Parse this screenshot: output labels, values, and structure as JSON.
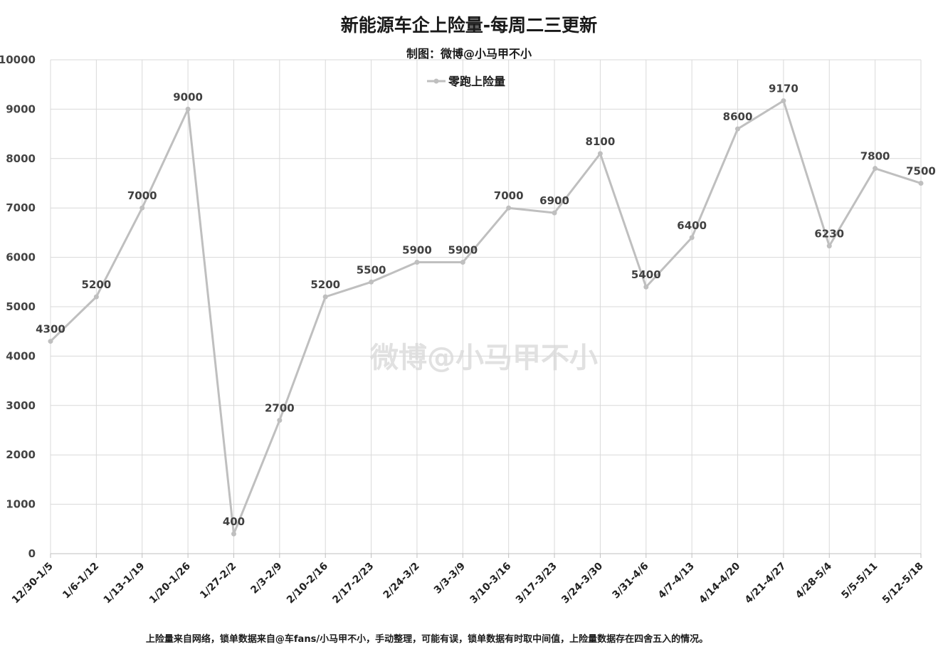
{
  "chart_data": {
    "type": "line",
    "title": "新能源车企上险量-每周二三更新",
    "subtitle": "制图：微博@小马甲不小",
    "footnote": "上险量来自网络，锁单数据来自@车fans/小马甲不小，手动整理，可能有误，锁单数据有时取中间值，上险量数据存在四舍五入的情况。",
    "watermark": "微博@小马甲不小",
    "categories": [
      "12/30-1/5",
      "1/6-1/12",
      "1/13-1/19",
      "1/20-1/26",
      "1/27-2/2",
      "2/3-2/9",
      "2/10-2/16",
      "2/17-2/23",
      "2/24-3/2",
      "3/3-3/9",
      "3/10-3/16",
      "3/17-3/23",
      "3/24-3/30",
      "3/31-4/6",
      "4/7-4/13",
      "4/14-4/20",
      "4/21-4/27",
      "4/28-5/4",
      "5/5-5/11",
      "5/12-5/18"
    ],
    "series": [
      {
        "name": "零跑上险量",
        "color": "#bfbfbf",
        "values": [
          4300,
          5200,
          7000,
          9000,
          400,
          2700,
          5200,
          5500,
          5900,
          5900,
          7000,
          6900,
          8100,
          5400,
          6400,
          8600,
          9170,
          6230,
          7800,
          7500
        ]
      }
    ],
    "yticks": [
      0,
      1000,
      2000,
      3000,
      4000,
      5000,
      6000,
      7000,
      8000,
      9000,
      10000
    ],
    "ylim": [
      0,
      10000
    ],
    "grid": true,
    "legend_position": "top-center"
  }
}
